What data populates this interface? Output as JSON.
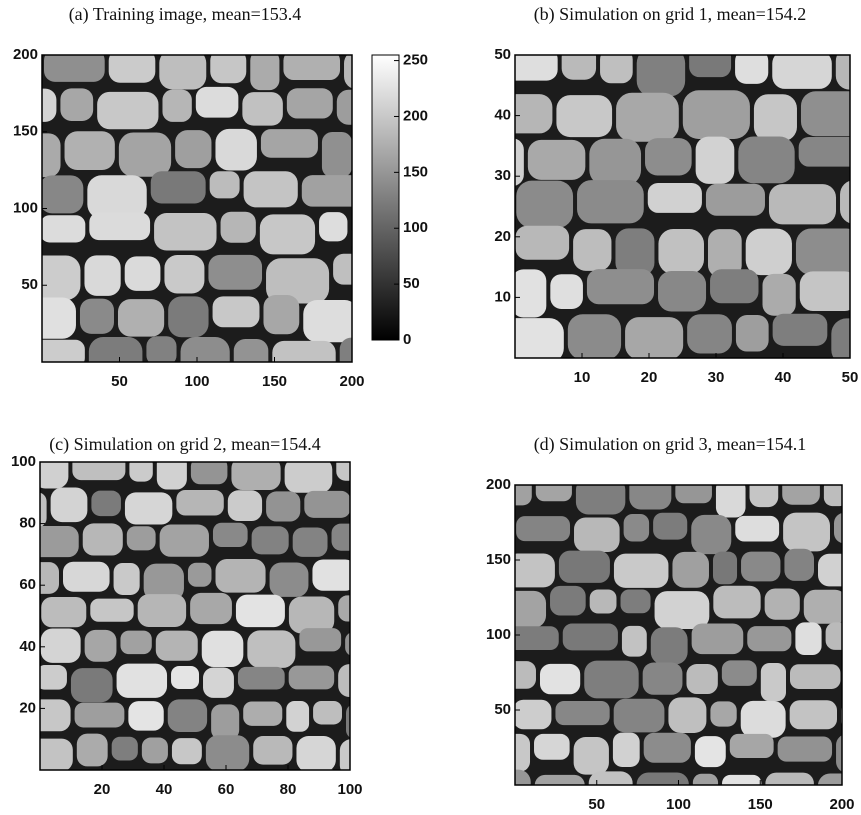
{
  "chart_data": [
    {
      "type": "image",
      "title": "(a) Training image, mean=153.4",
      "colormap": "gray",
      "xlim": [
        0,
        200
      ],
      "ylim": [
        0,
        200
      ],
      "xticks": [
        50,
        100,
        150,
        200
      ],
      "yticks": [
        50,
        100,
        150,
        200
      ],
      "colorbar": {
        "lim": [
          0,
          255
        ],
        "ticks": [
          0,
          50,
          100,
          150,
          200,
          250
        ]
      }
    },
    {
      "type": "image",
      "title": "(b) Simulation on grid 1, mean=154.2",
      "colormap": "gray",
      "xlim": [
        0,
        50
      ],
      "ylim": [
        0,
        50
      ],
      "xticks": [
        10,
        20,
        30,
        40,
        50
      ],
      "yticks": [
        10,
        20,
        30,
        40,
        50
      ]
    },
    {
      "type": "image",
      "title": "(c) Simulation on grid 2, mean=154.4",
      "colormap": "gray",
      "xlim": [
        0,
        100
      ],
      "ylim": [
        0,
        100
      ],
      "xticks": [
        20,
        40,
        60,
        80,
        100
      ],
      "yticks": [
        20,
        40,
        60,
        80,
        100
      ]
    },
    {
      "type": "image",
      "title": "(d) Simulation on grid 3, mean=154.1",
      "colormap": "gray",
      "xlim": [
        0,
        200
      ],
      "ylim": [
        0,
        200
      ],
      "xticks": [
        50,
        100,
        150,
        200
      ],
      "yticks": [
        50,
        100,
        150,
        200
      ]
    }
  ]
}
